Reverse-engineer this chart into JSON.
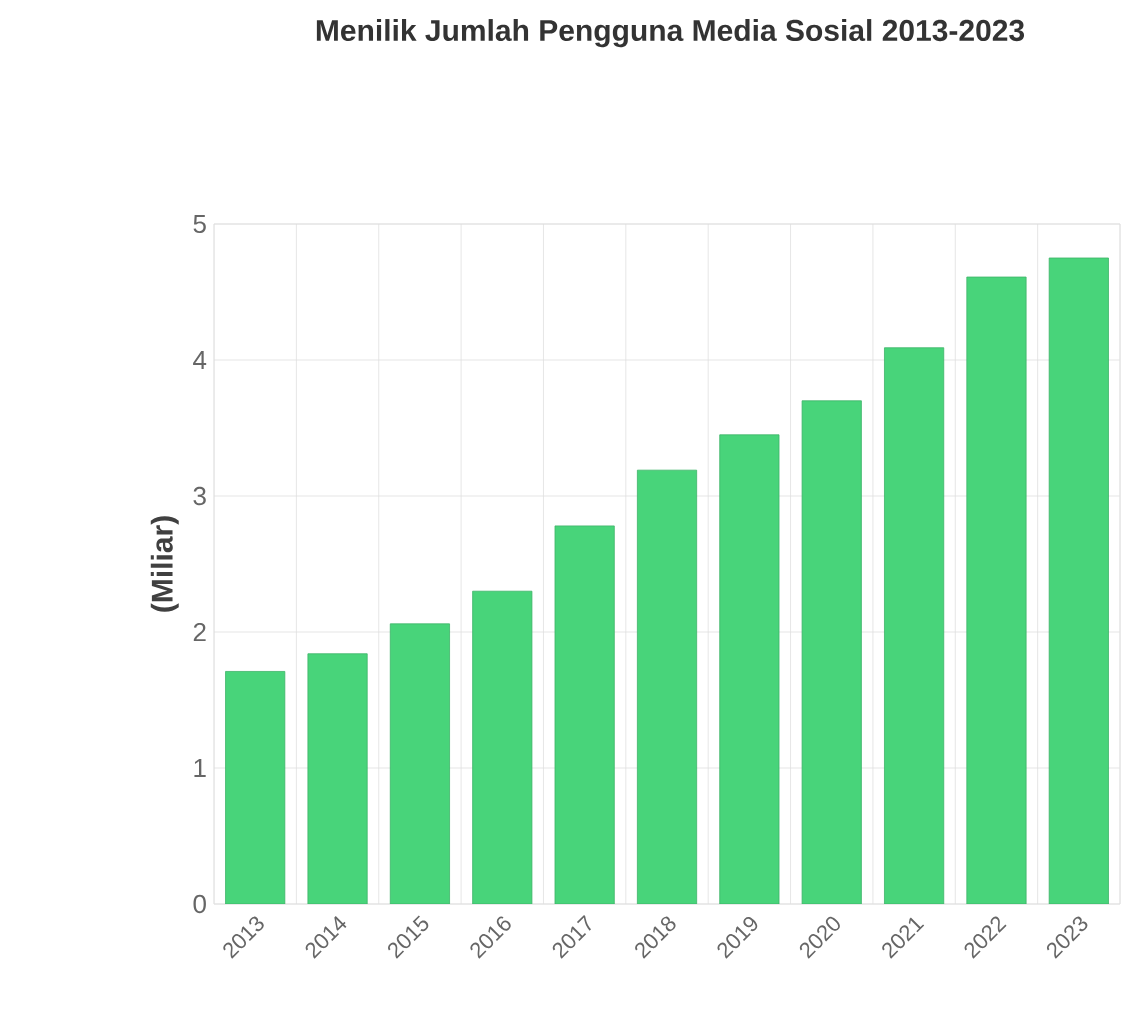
{
  "chart_data": {
    "type": "bar",
    "title": "Menilik Jumlah Pengguna Media Sosial 2013-2023",
    "ylabel": "(Miliar)",
    "categories": [
      "2013",
      "2014",
      "2015",
      "2016",
      "2017",
      "2018",
      "2019",
      "2020",
      "2021",
      "2022",
      "2023"
    ],
    "values": [
      1.71,
      1.84,
      2.06,
      2.3,
      2.78,
      3.19,
      3.45,
      3.7,
      4.09,
      4.61,
      4.75
    ],
    "color": "#48d47a",
    "ylim": [
      0,
      5
    ],
    "yticks": [
      0,
      1,
      2,
      3,
      4,
      5
    ],
    "grid": true
  }
}
